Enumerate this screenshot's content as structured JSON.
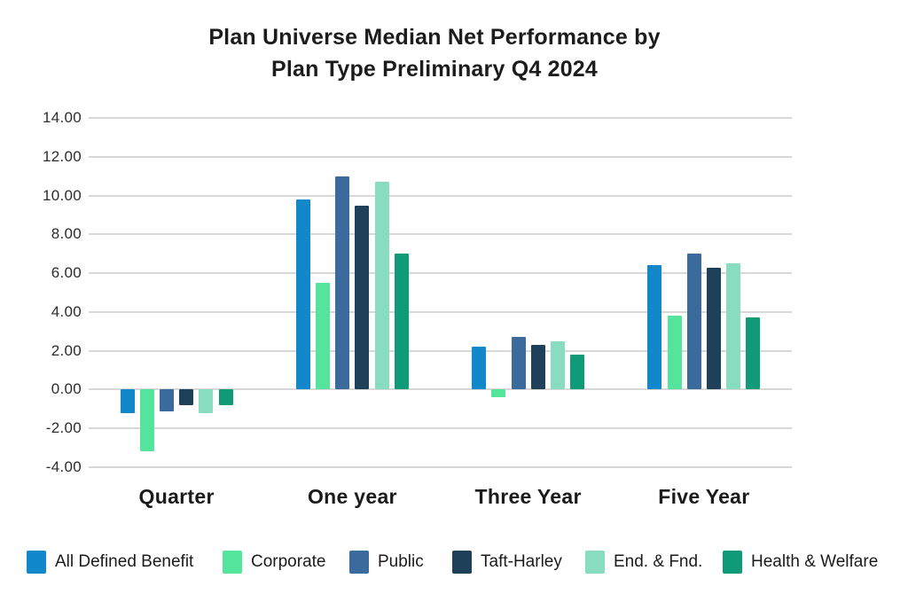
{
  "title": {
    "line1": "Plan Universe Median Net Performance by",
    "line2": "Plan Type Preliminary Q4 2024"
  },
  "chart_data": {
    "type": "bar",
    "title": "Plan Universe Median Net Performance by Plan Type Preliminary Q4 2024",
    "categories": [
      "Quarter",
      "One year",
      "Three Year",
      "Five Year"
    ],
    "series": [
      {
        "name": "All Defined Benefit",
        "color": "#1287c9",
        "values": [
          -1.2,
          9.8,
          2.2,
          6.4
        ]
      },
      {
        "name": "Corporate",
        "color": "#55e49c",
        "values": [
          -3.2,
          5.5,
          -0.4,
          3.8
        ]
      },
      {
        "name": "Public",
        "color": "#3a6b9c",
        "values": [
          -1.1,
          11.0,
          2.7,
          7.0
        ]
      },
      {
        "name": "Taft-Harley",
        "color": "#1f4059",
        "values": [
          -0.8,
          9.5,
          2.3,
          6.3
        ]
      },
      {
        "name": "End. & Fnd.",
        "color": "#88dcc0",
        "values": [
          -1.2,
          10.7,
          2.5,
          6.5
        ]
      },
      {
        "name": "Health & Welfare",
        "color": "#0f9b77",
        "values": [
          -0.8,
          7.0,
          1.8,
          3.7
        ]
      }
    ],
    "y_ticks": [
      14,
      12,
      10,
      8,
      6,
      4,
      2,
      0,
      -2,
      -4
    ],
    "y_tick_labels": [
      "14.00",
      "12.00",
      "10.00",
      "8.00",
      "6.00",
      "4.00",
      "2.00",
      "0.00",
      "-2.00",
      "-4.00"
    ],
    "ylim": [
      -4,
      14
    ],
    "xlabel": "",
    "ylabel": "",
    "grid": true,
    "legend_position": "bottom"
  },
  "colors": {
    "gridline": "#d8d8d8",
    "title_text": "#1c1c1c",
    "axis_text": "#2d2d2d"
  }
}
